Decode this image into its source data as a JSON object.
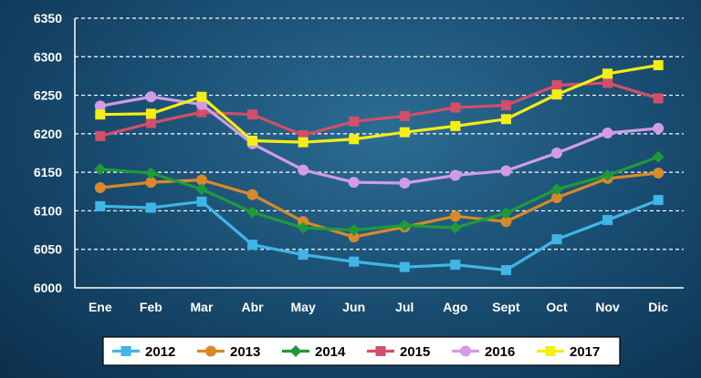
{
  "chart_data": {
    "type": "line",
    "title": "",
    "xlabel": "",
    "ylabel": "",
    "categories": [
      "Ene",
      "Feb",
      "Mar",
      "Abr",
      "May",
      "Jun",
      "Jul",
      "Ago",
      "Sept",
      "Oct",
      "Nov",
      "Dic"
    ],
    "ylim": [
      6000,
      6350
    ],
    "yticks": [
      6000,
      6050,
      6100,
      6150,
      6200,
      6250,
      6300,
      6350
    ],
    "grid": "horizontal dashed",
    "legend": "bottom",
    "series": [
      {
        "name": "2012",
        "color": "#3fb6e6",
        "marker": "square",
        "values": [
          6106,
          6104,
          6112,
          6056,
          6043,
          6034,
          6027,
          6030,
          6023,
          6063,
          6088,
          6114
        ]
      },
      {
        "name": "2013",
        "color": "#d8892a",
        "marker": "circle",
        "values": [
          6130,
          6137,
          6140,
          6121,
          6086,
          6066,
          6079,
          6093,
          6086,
          6117,
          6142,
          6149
        ]
      },
      {
        "name": "2014",
        "color": "#1f9a3a",
        "marker": "diamond",
        "values": [
          6154,
          6149,
          6128,
          6098,
          6078,
          6075,
          6081,
          6078,
          6097,
          6128,
          6146,
          6170
        ]
      },
      {
        "name": "2015",
        "color": "#d24f69",
        "marker": "square",
        "values": [
          6197,
          6214,
          6228,
          6225,
          6198,
          6216,
          6223,
          6234,
          6237,
          6263,
          6266,
          6246
        ]
      },
      {
        "name": "2016",
        "color": "#d29be6",
        "marker": "circle",
        "values": [
          6236,
          6248,
          6238,
          6187,
          6153,
          6137,
          6136,
          6146,
          6152,
          6175,
          6201,
          6207
        ]
      },
      {
        "name": "2017",
        "color": "#f4ee14",
        "marker": "square",
        "values": [
          6225,
          6226,
          6248,
          6191,
          6189,
          6193,
          6202,
          6210,
          6219,
          6251,
          6278,
          6289
        ]
      }
    ]
  }
}
